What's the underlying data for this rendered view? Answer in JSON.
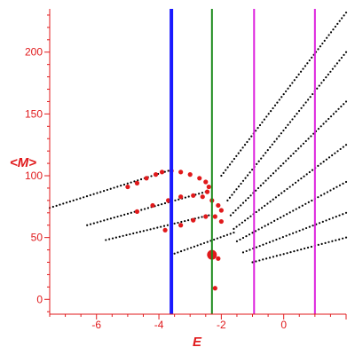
{
  "chart_data": {
    "type": "scatter",
    "xlabel": "E",
    "ylabel": "<M>",
    "xlim": [
      -7.5,
      2.0
    ],
    "ylim": [
      -12,
      235
    ],
    "x_ticks": [
      -6,
      -4,
      -2,
      0
    ],
    "y_ticks": [
      0,
      50,
      100,
      150,
      200
    ],
    "grid": false,
    "legend": "none",
    "vertical_lines": [
      {
        "x": -3.6,
        "color": "#1a1aff"
      },
      {
        "x": -2.3,
        "color": "#1b8a1b"
      },
      {
        "x": -0.95,
        "color": "#dd22dd"
      },
      {
        "x": 1.0,
        "color": "#dd22dd"
      }
    ],
    "series": [
      {
        "color": "#000000",
        "description_points": "black dotted trajectories",
        "lines": [
          {
            "from": [
              -7.5,
              74
            ],
            "to": [
              -3.7,
              104
            ]
          },
          {
            "from": [
              -6.3,
              60
            ],
            "to": [
              -2.5,
              87
            ]
          },
          {
            "from": [
              -5.7,
              48
            ],
            "to": [
              -2.4,
              68
            ]
          },
          {
            "from": [
              -3.5,
              37
            ],
            "to": [
              -1.6,
              54
            ]
          },
          {
            "from": [
              -2.0,
              100
            ],
            "to": [
              2.0,
              232
            ]
          },
          {
            "from": [
              -1.8,
              80
            ],
            "to": [
              2.0,
              200
            ]
          },
          {
            "from": [
              -1.7,
              68
            ],
            "to": [
              2.0,
              160
            ]
          },
          {
            "from": [
              -1.6,
              57
            ],
            "to": [
              2.0,
              125
            ]
          },
          {
            "from": [
              -1.5,
              47
            ],
            "to": [
              2.0,
              95
            ]
          },
          {
            "from": [
              -1.3,
              38
            ],
            "to": [
              2.0,
              70
            ]
          },
          {
            "from": [
              -1.0,
              30
            ],
            "to": [
              2.0,
              50
            ]
          }
        ]
      },
      {
        "color": "#e0191b",
        "points": [
          [
            -5.0,
            91
          ],
          [
            -4.7,
            94
          ],
          [
            -4.4,
            98
          ],
          [
            -4.1,
            101
          ],
          [
            -3.9,
            103
          ],
          [
            -3.6,
            104
          ],
          [
            -3.3,
            103
          ],
          [
            -3.0,
            101
          ],
          [
            -2.7,
            98
          ],
          [
            -2.5,
            95
          ],
          [
            -2.4,
            91
          ],
          [
            -2.45,
            87
          ],
          [
            -4.7,
            71
          ],
          [
            -4.2,
            76
          ],
          [
            -3.7,
            80
          ],
          [
            -3.3,
            83
          ],
          [
            -2.9,
            84
          ],
          [
            -2.6,
            83
          ],
          [
            -2.3,
            80
          ],
          [
            -2.1,
            76
          ],
          [
            -2.0,
            72
          ],
          [
            -3.8,
            56
          ],
          [
            -3.3,
            60
          ],
          [
            -2.9,
            64
          ],
          [
            -2.5,
            67
          ],
          [
            -2.2,
            67
          ],
          [
            -2.0,
            63
          ],
          [
            -2.3,
            37
          ],
          [
            -2.1,
            33
          ],
          [
            -2.2,
            9
          ]
        ],
        "big_points": [
          [
            -2.3,
            36
          ]
        ]
      }
    ]
  }
}
